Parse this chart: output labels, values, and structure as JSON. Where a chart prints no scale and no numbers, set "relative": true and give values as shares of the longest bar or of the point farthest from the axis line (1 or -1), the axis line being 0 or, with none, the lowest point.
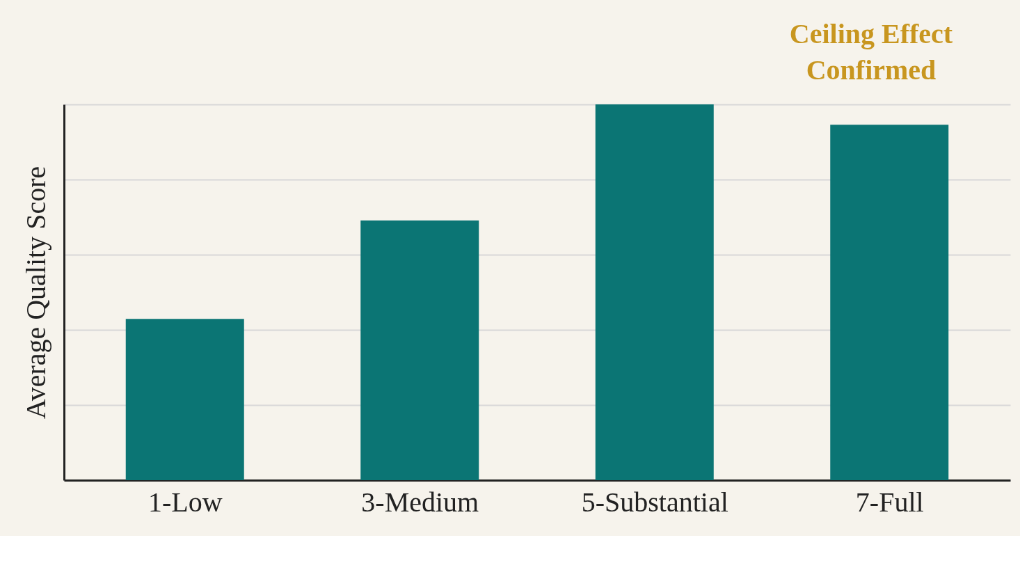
{
  "chart_data": {
    "type": "bar",
    "ylabel": "Average Quality Score",
    "categories": [
      "1-Low",
      "3-Medium",
      "5-Substantial",
      "7-Full"
    ],
    "values": [
      0.429,
      0.691,
      1,
      0.946
    ],
    "color": "#0b7574",
    "relative": true,
    "grid": "y",
    "annotations": [
      "Ceiling Effect Confirmed"
    ]
  }
}
